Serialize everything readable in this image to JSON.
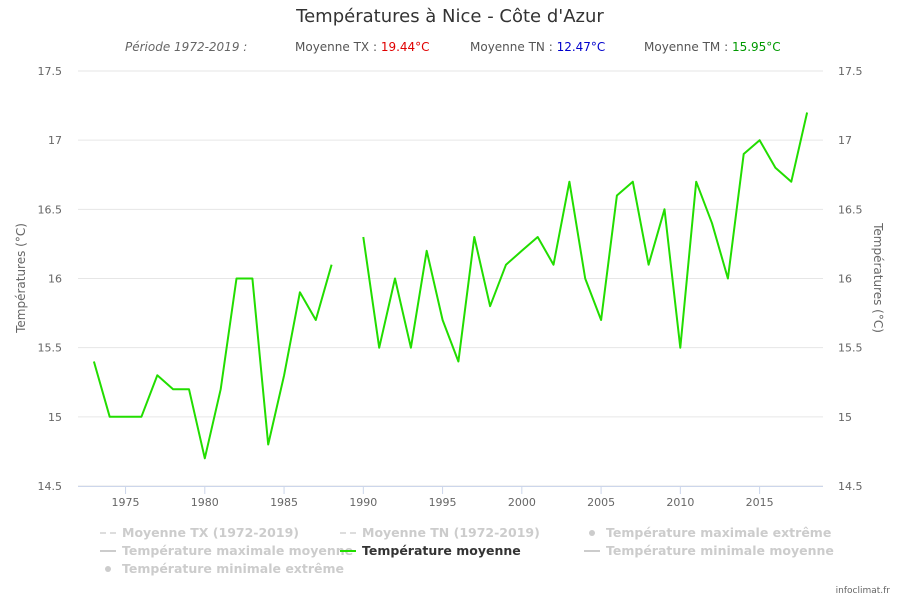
{
  "chart_data": {
    "type": "line",
    "title": "Températures à Nice - Côte d'Azur",
    "subtitle": {
      "period": "Période 1972-2019 :",
      "tx_label": "Moyenne TX : ",
      "tx_value": "19.44°C",
      "tn_label": "Moyenne TN : ",
      "tn_value": "12.47°C",
      "tm_label": "Moyenne TM : ",
      "tm_value": "15.95°C"
    },
    "ylabel_left": "Températures (°C)",
    "ylabel_right": "Températures (°C)",
    "ylim": [
      14.5,
      17.5
    ],
    "yticks": [
      14.5,
      15,
      15.5,
      16,
      16.5,
      17,
      17.5
    ],
    "ytick_labels": [
      "14.5",
      "15",
      "15.5",
      "16",
      "16.5",
      "17",
      "17.5"
    ],
    "xlim": [
      1972,
      2019
    ],
    "xticks": [
      1975,
      1980,
      1985,
      1990,
      1995,
      2000,
      2005,
      2010,
      2015
    ],
    "xtick_labels": [
      "1975",
      "1980",
      "1985",
      "1990",
      "1995",
      "2000",
      "2005",
      "2010",
      "2015"
    ],
    "series": [
      {
        "name": "Température moyenne",
        "color": "#22dd00",
        "x": [
          1973,
          1974,
          1975,
          1976,
          1977,
          1978,
          1979,
          1980,
          1981,
          1982,
          1983,
          1984,
          1985,
          1986,
          1987,
          1988,
          1989,
          1990,
          1991,
          1992,
          1993,
          1994,
          1995,
          1996,
          1997,
          1998,
          1999,
          2000,
          2001,
          2002,
          2003,
          2004,
          2005,
          2006,
          2007,
          2008,
          2009,
          2010,
          2011,
          2012,
          2013,
          2014,
          2015,
          2016,
          2017,
          2018
        ],
        "values": [
          15.4,
          15.0,
          15.0,
          15.0,
          15.3,
          15.2,
          15.2,
          14.7,
          15.2,
          16.0,
          16.0,
          14.8,
          15.3,
          15.9,
          15.7,
          16.1,
          null,
          16.3,
          15.5,
          16.0,
          15.5,
          16.2,
          15.7,
          15.4,
          16.3,
          15.8,
          16.1,
          16.2,
          16.3,
          16.1,
          16.7,
          16.0,
          15.7,
          16.6,
          16.7,
          16.1,
          16.5,
          15.5,
          16.7,
          16.4,
          16.0,
          16.9,
          17.0,
          16.8,
          16.7,
          17.2
        ]
      }
    ],
    "legend": [
      {
        "label": "Moyenne TX (1972-2019)",
        "symbol": "dash",
        "active": false
      },
      {
        "label": "Moyenne TN (1972-2019)",
        "symbol": "dash",
        "active": false
      },
      {
        "label": "Température maximale extrême",
        "symbol": "dot",
        "active": false
      },
      {
        "label": "Température maximale moyenne",
        "symbol": "line",
        "active": false
      },
      {
        "label": "Température moyenne",
        "symbol": "green-line",
        "active": true
      },
      {
        "label": "Température minimale moyenne",
        "symbol": "line",
        "active": false
      },
      {
        "label": "Température minimale extrême",
        "symbol": "dot",
        "active": false
      }
    ],
    "legend_position": "bottom",
    "grid": true,
    "credit": "infoclimat.fr"
  }
}
